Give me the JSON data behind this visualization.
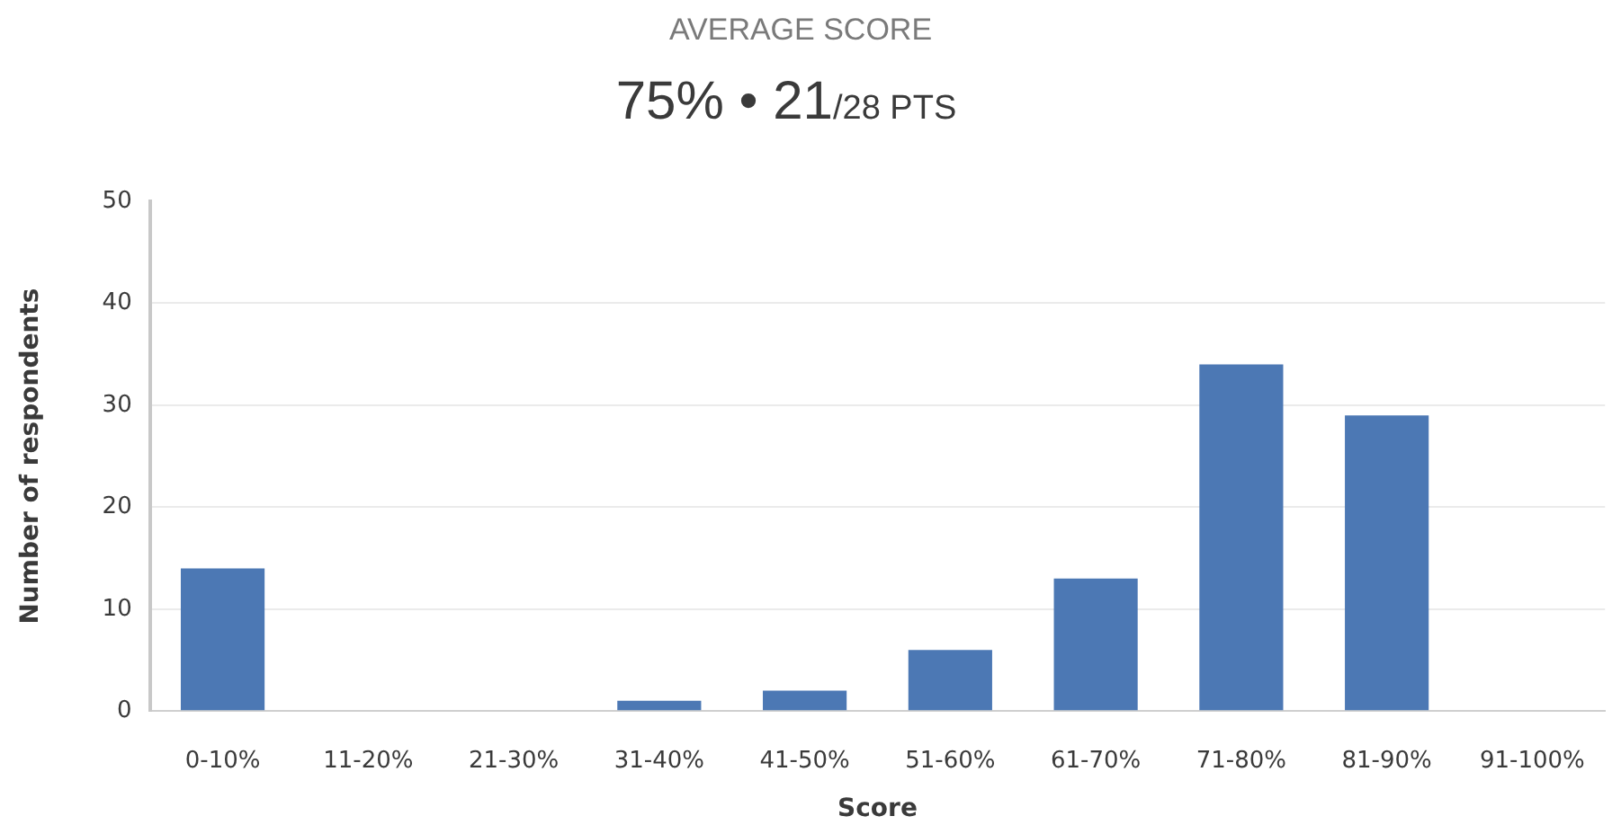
{
  "chart_data": {
    "type": "bar",
    "title": "AVERAGE SCORE",
    "subtitle": "75% • 21/28 PTS",
    "xlabel": "Score",
    "ylabel": "Number of respondents",
    "categories": [
      "0-10%",
      "11-20%",
      "21-30%",
      "31-40%",
      "41-50%",
      "51-60%",
      "61-70%",
      "71-80%",
      "81-90%",
      "91-100%"
    ],
    "values": [
      14,
      0,
      0,
      1,
      2,
      6,
      13,
      34,
      29,
      0
    ],
    "color": "#4c78b4",
    "ylim": [
      0,
      50
    ],
    "yticks": [
      0,
      10,
      20,
      30,
      40,
      50
    ],
    "grid": "y"
  }
}
